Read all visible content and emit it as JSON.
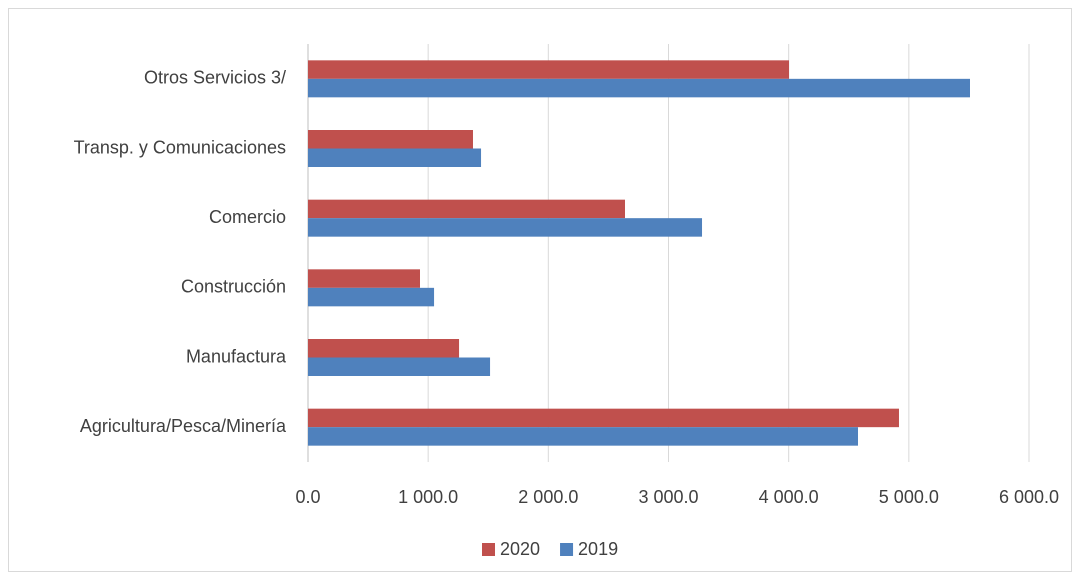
{
  "chart_data": {
    "type": "bar",
    "orientation": "horizontal",
    "categories": [
      "Agricultura/Pesca/Minería",
      "Manufactura",
      "Construcción",
      "Comercio",
      "Transp. y Comunicaciones",
      "Otros Servicios 3/"
    ],
    "series": [
      {
        "name": "2020",
        "color": "#c0504d",
        "values": [
          4918,
          1257,
          932,
          2638,
          1373,
          4003
        ]
      },
      {
        "name": "2019",
        "color": "#4f81bd",
        "values": [
          4577,
          1515,
          1049,
          3279,
          1440,
          5509
        ]
      }
    ],
    "xlim": [
      0,
      6000
    ],
    "xticks": [
      {
        "value": 0,
        "label": "0.0"
      },
      {
        "value": 1000,
        "label": "1 000.0"
      },
      {
        "value": 2000,
        "label": "2 000.0"
      },
      {
        "value": 3000,
        "label": "3 000.0"
      },
      {
        "value": 4000,
        "label": "4 000.0"
      },
      {
        "value": 5000,
        "label": "5 000.0"
      },
      {
        "value": 6000,
        "label": "6 000.0"
      }
    ],
    "grid": true,
    "legend": "bottom"
  }
}
